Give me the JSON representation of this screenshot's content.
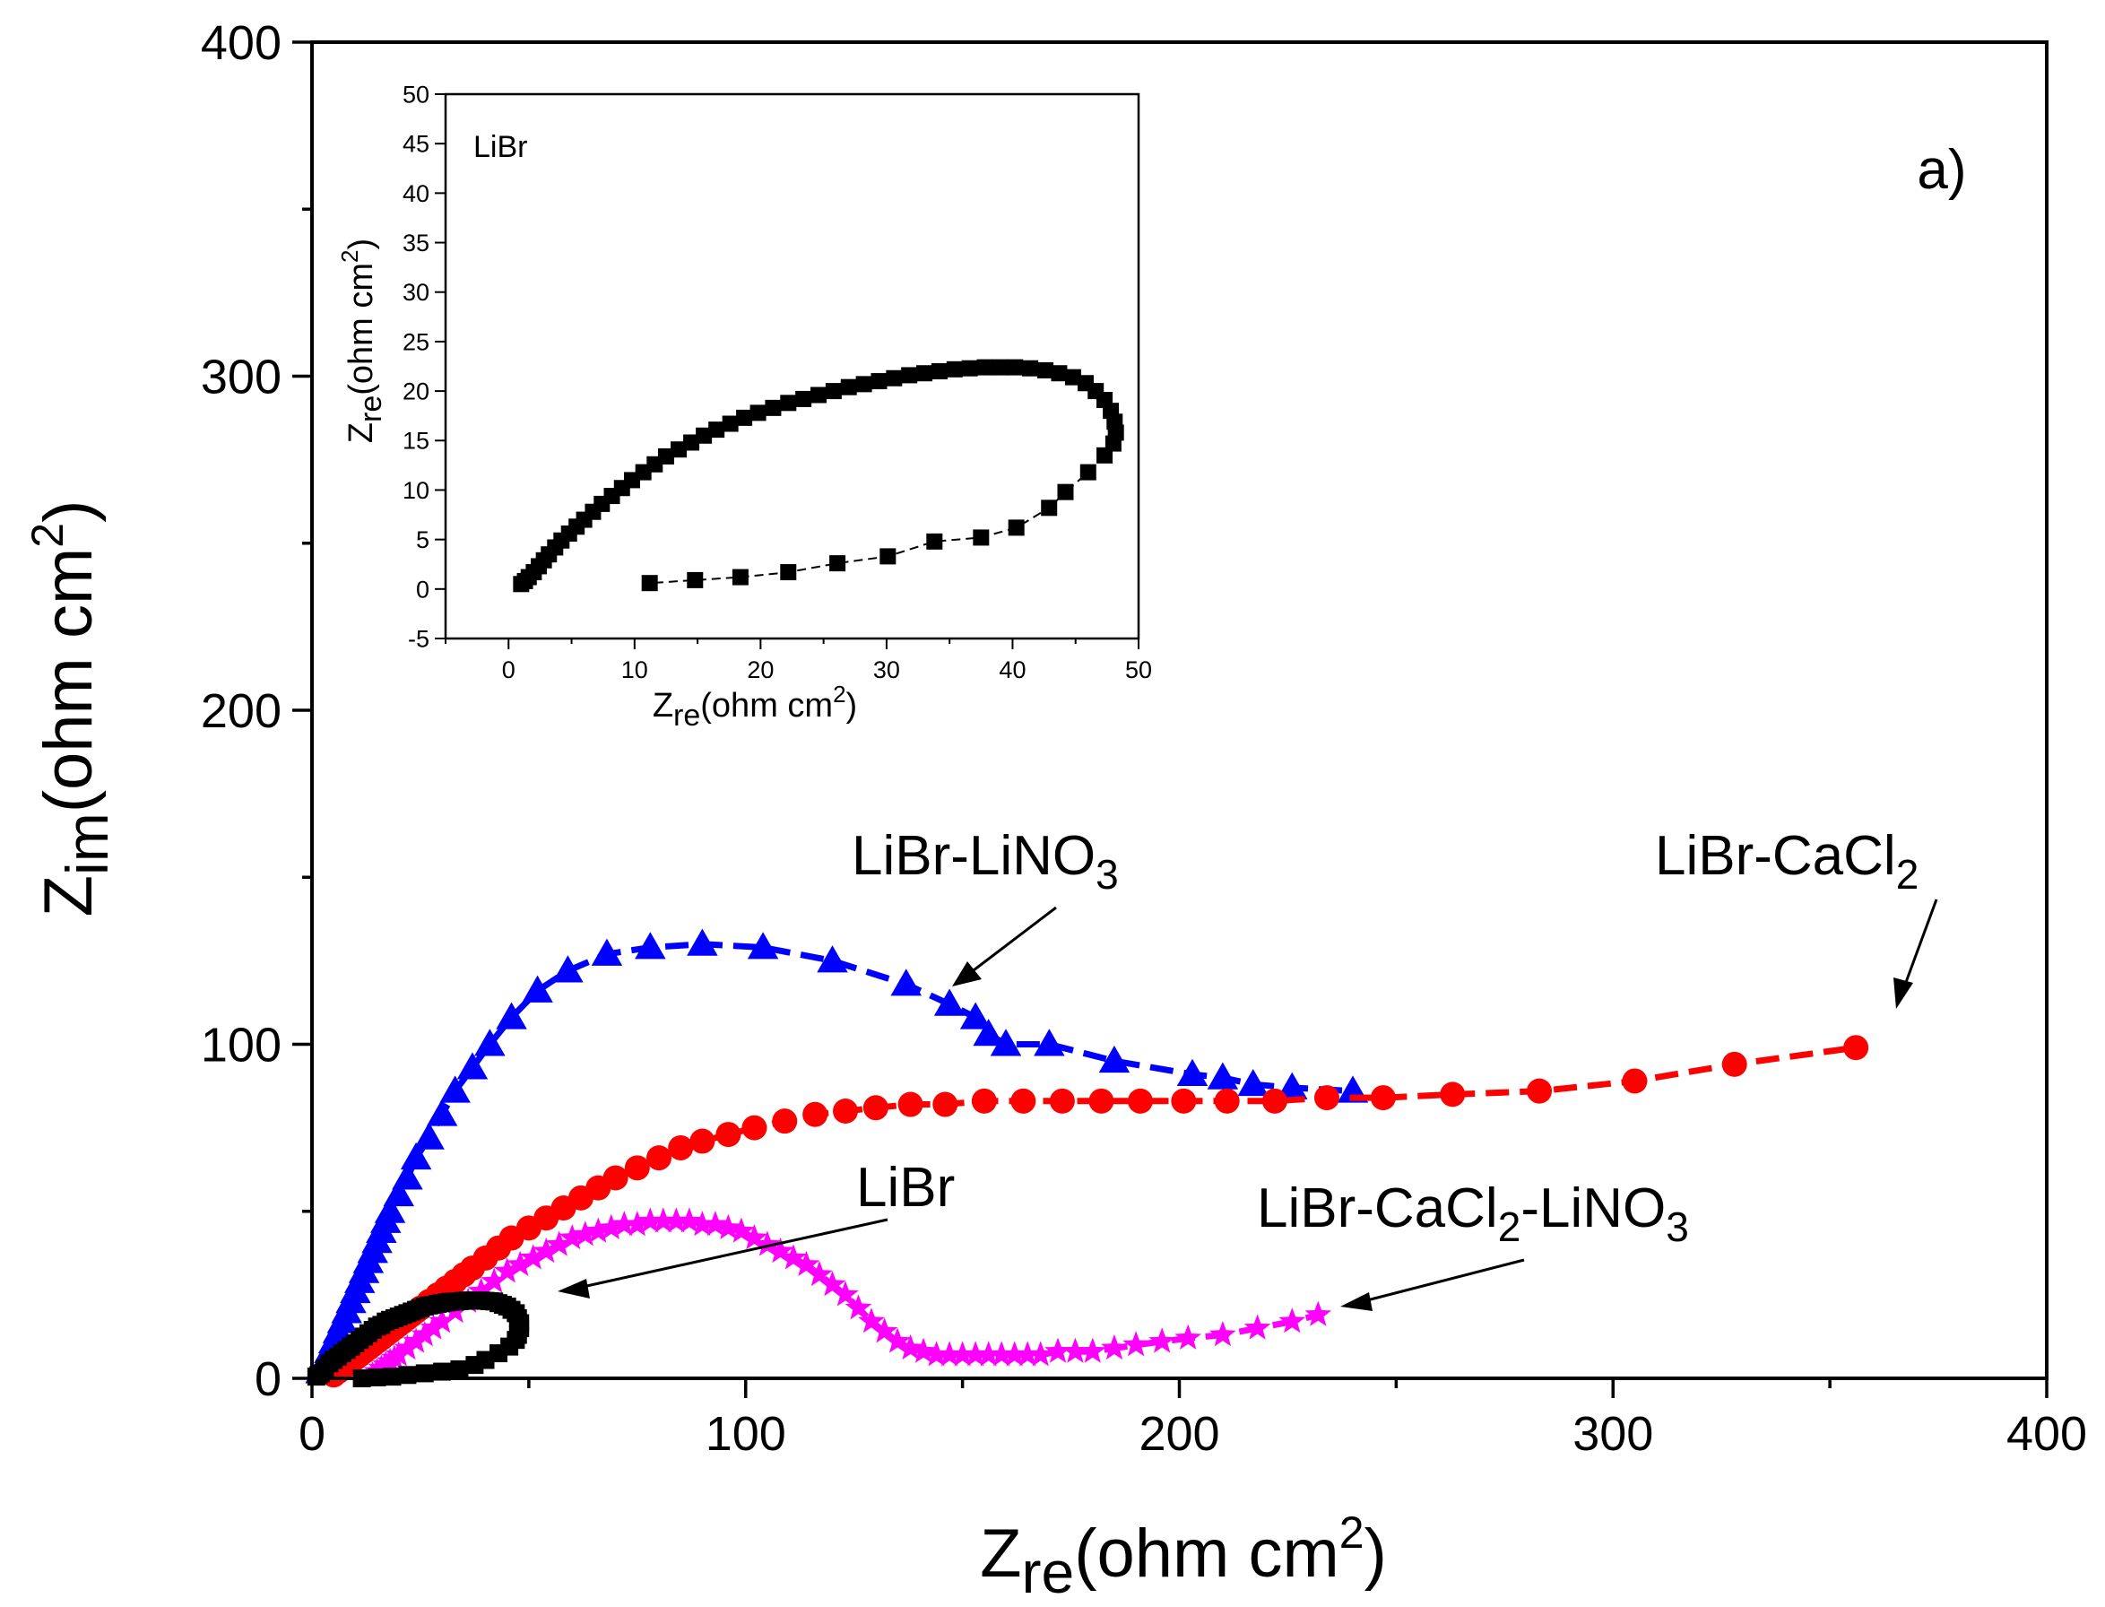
{
  "chart_data": [
    {
      "type": "scatter",
      "title": "",
      "panel_label": "a)",
      "xlabel": {
        "base": "Z",
        "sub": "re",
        "unit": "(ohm cm",
        "sup": "2",
        "close": ")"
      },
      "ylabel": {
        "base": "Z",
        "sub": "im",
        "unit": "(ohm cm",
        "sup": "2",
        "close": ")"
      },
      "xlim": [
        0,
        400
      ],
      "ylim": [
        0,
        400
      ],
      "xticks": [
        "0",
        "100",
        "200",
        "300",
        "400"
      ],
      "yticks": [
        "0",
        "100",
        "200",
        "300",
        "400"
      ],
      "grid": false,
      "series": [
        {
          "name": "LiBr-LiNO3",
          "label": {
            "base": "LiBr-LiNO",
            "sub": "3",
            "rest": ""
          },
          "color": "#0000ff",
          "marker": "triangle",
          "line": "dash",
          "x": [
            2,
            3,
            4,
            5,
            6,
            7,
            8,
            9,
            10,
            11,
            12,
            13,
            14,
            15,
            16,
            17,
            18,
            20,
            22,
            24,
            27,
            30,
            33,
            37,
            41,
            46,
            52,
            59,
            68,
            78,
            90,
            104,
            120,
            137,
            147,
            153,
            156,
            160,
            170,
            185,
            203,
            210,
            217,
            226,
            240
          ],
          "y": [
            2,
            5,
            8,
            11,
            14,
            17,
            20,
            23,
            26,
            29,
            32,
            35,
            38,
            41,
            44,
            47,
            50,
            55,
            60,
            66,
            72,
            79,
            86,
            93,
            100,
            108,
            116,
            122,
            127,
            129,
            130,
            129,
            125,
            118,
            112,
            108,
            103,
            100,
            100,
            95,
            91,
            90,
            88,
            87,
            86
          ]
        },
        {
          "name": "LiBr-CaCl2",
          "label": {
            "base": "LiBr-CaCl",
            "sub": "2",
            "rest": ""
          },
          "color": "#ff0000",
          "marker": "circle",
          "line": "dash",
          "x": [
            5,
            6,
            7,
            8,
            9,
            10,
            11,
            12,
            13,
            14,
            15,
            16,
            17,
            18,
            19,
            20,
            21,
            22,
            23,
            24,
            25,
            27,
            29,
            31,
            33,
            35,
            37,
            40,
            43,
            46,
            50,
            54,
            58,
            62,
            66,
            70,
            75,
            80,
            85,
            90,
            96,
            102,
            109,
            116,
            123,
            130,
            138,
            146,
            155,
            164,
            173,
            182,
            191,
            201,
            211,
            222,
            234,
            247,
            263,
            283,
            305,
            328,
            356
          ],
          "y": [
            1,
            2,
            3,
            4,
            5,
            6,
            7,
            8,
            9,
            10,
            11,
            12,
            13,
            14,
            15,
            16,
            17,
            18,
            19,
            20,
            21,
            23,
            25,
            27,
            29,
            31,
            33,
            36,
            39,
            42,
            45,
            48,
            51,
            54,
            57,
            60,
            63,
            66,
            69,
            71,
            73,
            75,
            77,
            79,
            80,
            81,
            82,
            82,
            83,
            83,
            83,
            83,
            83,
            83,
            83,
            83,
            84,
            84,
            85,
            86,
            89,
            94,
            99
          ]
        },
        {
          "name": "LiBr-CaCl2-LiNO3",
          "label": {
            "base": "LiBr-CaCl",
            "sub": "2",
            "rest": "-LiNO",
            "sub2": "3"
          },
          "color": "#ff00ff",
          "marker": "star",
          "line": "dash",
          "x": [
            14,
            15,
            16,
            17,
            18,
            19,
            20,
            22,
            24,
            26,
            28,
            30,
            33,
            36,
            39,
            42,
            45,
            48,
            51,
            54,
            57,
            60,
            63,
            66,
            69,
            72,
            75,
            78,
            81,
            84,
            87,
            90,
            93,
            96,
            99,
            102,
            105,
            108,
            111,
            114,
            117,
            120,
            123,
            126,
            129,
            132,
            135,
            138,
            141,
            144,
            147,
            150,
            153,
            156,
            159,
            162,
            165,
            168,
            172,
            176,
            180,
            185,
            190,
            196,
            202,
            210,
            218,
            226,
            232
          ],
          "y": [
            1,
            2,
            3,
            4,
            5,
            6,
            7,
            9,
            11,
            13,
            15,
            17,
            20,
            23,
            26,
            29,
            32,
            34,
            36,
            38,
            40,
            42,
            43,
            44,
            45,
            46,
            46,
            47,
            47,
            47,
            47,
            46,
            46,
            45,
            44,
            42,
            40,
            38,
            36,
            34,
            31,
            28,
            25,
            21,
            17,
            14,
            11,
            9,
            8,
            7,
            7,
            7,
            7,
            7,
            7,
            7,
            7,
            7,
            8,
            8,
            8,
            9,
            10,
            11,
            12,
            13,
            15,
            17,
            19
          ]
        },
        {
          "name": "LiBr",
          "label": {
            "base": "LiBr",
            "sub": "",
            "rest": ""
          },
          "color": "#000000",
          "marker": "square",
          "line": "dash",
          "x": [
            1,
            1.5,
            2,
            3,
            4,
            5,
            6,
            7,
            8,
            9,
            10,
            11,
            12,
            13,
            14,
            15,
            16,
            17,
            18,
            19,
            20,
            21,
            22,
            23,
            24,
            25,
            26,
            27,
            28,
            29,
            30,
            31,
            32,
            33,
            34,
            35,
            36,
            37,
            38,
            39,
            40,
            41,
            42,
            43,
            44,
            45,
            46,
            47,
            47.5,
            48,
            48,
            47.5,
            47,
            45.5,
            43,
            40,
            37.5,
            34,
            30,
            26,
            22,
            18.5,
            15,
            11.5
          ],
          "y": [
            0.5,
            1,
            1.5,
            3,
            4.5,
            5.5,
            6.5,
            7.5,
            8.5,
            9.5,
            10.5,
            11.5,
            12.5,
            13.5,
            14.5,
            15.5,
            16,
            17,
            17.5,
            18,
            18.5,
            19,
            19.5,
            20,
            20.5,
            21,
            21.5,
            21.8,
            22,
            22.3,
            22.5,
            22.7,
            22.9,
            23,
            23.1,
            23.2,
            23.3,
            23.3,
            23.3,
            23.3,
            23.2,
            23.1,
            23,
            22.5,
            22,
            21.5,
            20.5,
            19.5,
            18,
            16.5,
            15,
            13,
            11.5,
            9.5,
            7.5,
            5.5,
            4,
            2.7,
            2,
            1.5,
            1,
            0.5,
            0.3,
            0
          ]
        }
      ],
      "annotations": [
        {
          "series": "LiBr-LiNO3",
          "text": "LiBr-LiNO3"
        },
        {
          "series": "LiBr-CaCl2",
          "text": "LiBr-CaCl2"
        },
        {
          "series": "LiBr",
          "text": "LiBr"
        },
        {
          "series": "LiBr-CaCl2-LiNO3",
          "text": "LiBr-CaCl2-LiNO3"
        }
      ]
    },
    {
      "type": "scatter",
      "title": "",
      "panel_label": "LiBr",
      "xlabel": {
        "base": "Z",
        "sub": "re",
        "unit": "(ohm cm",
        "sup": "2",
        "close": ")"
      },
      "ylabel": {
        "base": "Z",
        "sub": "re",
        "unit": "(ohm cm",
        "sup": "2",
        "close": ")"
      },
      "xlim": [
        -5,
        50
      ],
      "ylim": [
        -5,
        50
      ],
      "xticks": [
        "0",
        "10",
        "20",
        "30",
        "40",
        "50"
      ],
      "yticks": [
        "-5",
        "0",
        "5",
        "10",
        "15",
        "20",
        "25",
        "30",
        "35",
        "40",
        "45",
        "50"
      ],
      "grid": false,
      "series": [
        {
          "name": "LiBr",
          "color": "#000000",
          "marker": "square",
          "line": "dash",
          "x": [
            1,
            1.3,
            1.6,
            2,
            2.4,
            2.8,
            3.2,
            3.7,
            4.2,
            4.8,
            5.4,
            6,
            6.7,
            7.4,
            8.2,
            9,
            9.8,
            10.7,
            11.6,
            12.5,
            13.5,
            14.5,
            15.5,
            16.5,
            17.6,
            18.7,
            19.8,
            21,
            22.2,
            23.4,
            24.6,
            25.8,
            27,
            28.2,
            29.4,
            30.6,
            31.8,
            33,
            34.2,
            35.4,
            36.6,
            37.8,
            39,
            40.2,
            41.4,
            42.6,
            43.7,
            44.8,
            45.8,
            46.6,
            47.3,
            47.8,
            48.1,
            48.2,
            48,
            47.3,
            46,
            44.2,
            42.9,
            40.3,
            37.5,
            33.8,
            30.1,
            26.1,
            22.2,
            18.4,
            14.8,
            11.2
          ],
          "y": [
            0.5,
            0.8,
            1.2,
            1.7,
            2.3,
            2.9,
            3.5,
            4.2,
            4.9,
            5.6,
            6.3,
            7,
            7.8,
            8.6,
            9.4,
            10.2,
            11,
            11.8,
            12.6,
            13.4,
            14.1,
            14.8,
            15.5,
            16.1,
            16.7,
            17.3,
            17.8,
            18.3,
            18.8,
            19.2,
            19.6,
            20,
            20.4,
            20.7,
            21,
            21.3,
            21.6,
            21.8,
            22,
            22.2,
            22.3,
            22.4,
            22.4,
            22.4,
            22.3,
            22.1,
            21.8,
            21.4,
            20.8,
            20,
            19.1,
            18,
            16.9,
            15.8,
            14.7,
            13.5,
            11.8,
            9.8,
            8.2,
            6.2,
            5.2,
            4.8,
            3.3,
            2.6,
            1.7,
            1.2,
            0.9,
            0.6
          ]
        }
      ]
    }
  ]
}
